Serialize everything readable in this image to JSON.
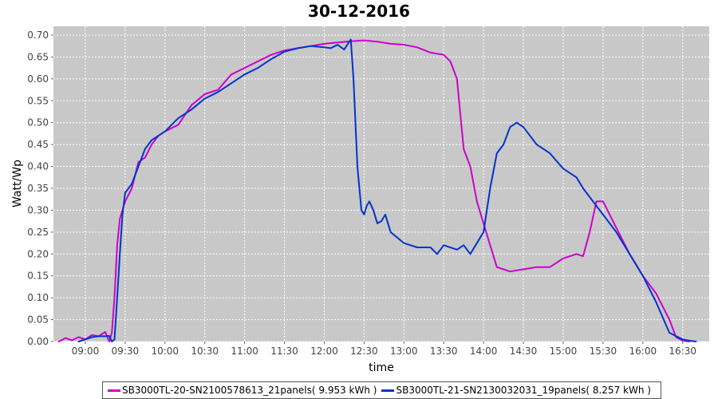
{
  "chart_data": {
    "type": "line",
    "title": "30-12-2016",
    "xlabel": "time",
    "ylabel": "Watt/Wp",
    "xlim": [
      "08:36",
      "16:50"
    ],
    "ylim": [
      0,
      0.72
    ],
    "yticks": [
      0.0,
      0.05,
      0.1,
      0.15,
      0.2,
      0.25,
      0.3,
      0.35,
      0.4,
      0.45,
      0.5,
      0.55,
      0.6,
      0.65,
      0.7
    ],
    "ytick_labels": [
      "0.00",
      "0.05",
      "0.10",
      "0.15",
      "0.20",
      "0.25",
      "0.30",
      "0.35",
      "0.40",
      "0.45",
      "0.50",
      "0.55",
      "0.60",
      "0.65",
      "0.70"
    ],
    "xticks": [
      "09:00",
      "09:30",
      "10:00",
      "10:30",
      "11:00",
      "11:30",
      "12:00",
      "12:30",
      "13:00",
      "13:30",
      "14:00",
      "14:30",
      "15:00",
      "15:30",
      "16:00",
      "16:30"
    ],
    "grid": true,
    "legend_position": "bottom",
    "background": "#c8c8c8",
    "series": [
      {
        "name": "SB3000TL-20-SN2100578613_21panels( 9.953 kWh )",
        "color": "#cc00cc",
        "x": [
          "08:40",
          "08:45",
          "08:50",
          "08:55",
          "09:00",
          "09:05",
          "09:10",
          "09:15",
          "09:18",
          "09:20",
          "09:22",
          "09:24",
          "09:26",
          "09:28",
          "09:30",
          "09:35",
          "09:40",
          "09:45",
          "09:50",
          "09:55",
          "10:00",
          "10:10",
          "10:20",
          "10:30",
          "10:40",
          "10:50",
          "11:00",
          "11:10",
          "11:20",
          "11:30",
          "11:40",
          "11:50",
          "12:00",
          "12:10",
          "12:20",
          "12:30",
          "12:40",
          "12:50",
          "13:00",
          "13:10",
          "13:20",
          "13:30",
          "13:35",
          "13:40",
          "13:45",
          "13:50",
          "13:55",
          "14:00",
          "14:05",
          "14:10",
          "14:15",
          "14:20",
          "14:30",
          "14:40",
          "14:50",
          "15:00",
          "15:10",
          "15:15",
          "15:20",
          "15:25",
          "15:30",
          "15:35",
          "15:40",
          "15:50",
          "16:00",
          "16:10",
          "16:20",
          "16:25",
          "16:30",
          "16:35"
        ],
        "y": [
          0.0,
          0.008,
          0.003,
          0.01,
          0.005,
          0.015,
          0.012,
          0.022,
          0.0,
          0.02,
          0.1,
          0.22,
          0.28,
          0.3,
          0.32,
          0.35,
          0.41,
          0.42,
          0.45,
          0.47,
          0.48,
          0.495,
          0.54,
          0.565,
          0.575,
          0.61,
          0.625,
          0.64,
          0.655,
          0.665,
          0.67,
          0.675,
          0.68,
          0.683,
          0.686,
          0.688,
          0.685,
          0.68,
          0.678,
          0.672,
          0.66,
          0.655,
          0.64,
          0.6,
          0.44,
          0.4,
          0.32,
          0.27,
          0.22,
          0.17,
          0.165,
          0.16,
          0.165,
          0.17,
          0.17,
          0.19,
          0.2,
          0.195,
          0.25,
          0.32,
          0.32,
          0.29,
          0.26,
          0.2,
          0.15,
          0.11,
          0.05,
          0.01,
          0.002,
          0.0
        ]
      },
      {
        "name": "SB3000TL-21-SN2130032031_19panels( 8.257 kWh )",
        "color": "#0033cc",
        "x": [
          "08:55",
          "09:00",
          "09:05",
          "09:10",
          "09:15",
          "09:18",
          "09:20",
          "09:22",
          "09:24",
          "09:26",
          "09:28",
          "09:30",
          "09:35",
          "09:40",
          "09:45",
          "09:50",
          "09:55",
          "10:00",
          "10:10",
          "10:20",
          "10:30",
          "10:40",
          "10:50",
          "11:00",
          "11:10",
          "11:20",
          "11:30",
          "11:40",
          "11:50",
          "12:00",
          "12:05",
          "12:10",
          "12:15",
          "12:20",
          "12:22",
          "12:25",
          "12:28",
          "12:30",
          "12:32",
          "12:34",
          "12:37",
          "12:40",
          "12:43",
          "12:46",
          "12:50",
          "13:00",
          "13:10",
          "13:20",
          "13:25",
          "13:30",
          "13:40",
          "13:45",
          "13:50",
          "14:00",
          "14:05",
          "14:10",
          "14:15",
          "14:20",
          "14:25",
          "14:30",
          "14:35",
          "14:40",
          "14:50",
          "15:00",
          "15:10",
          "15:15",
          "15:20",
          "15:30",
          "15:40",
          "15:50",
          "16:00",
          "16:10",
          "16:20",
          "16:30",
          "16:35",
          "16:40"
        ],
        "y": [
          0.0,
          0.005,
          0.01,
          0.012,
          0.012,
          0.013,
          0.0,
          0.005,
          0.1,
          0.2,
          0.29,
          0.34,
          0.36,
          0.4,
          0.44,
          0.46,
          0.47,
          0.48,
          0.51,
          0.53,
          0.555,
          0.57,
          0.59,
          0.61,
          0.625,
          0.645,
          0.662,
          0.67,
          0.675,
          0.672,
          0.67,
          0.678,
          0.667,
          0.69,
          0.6,
          0.4,
          0.3,
          0.29,
          0.31,
          0.32,
          0.3,
          0.27,
          0.275,
          0.29,
          0.25,
          0.225,
          0.215,
          0.215,
          0.2,
          0.22,
          0.21,
          0.22,
          0.2,
          0.25,
          0.35,
          0.43,
          0.45,
          0.49,
          0.5,
          0.49,
          0.47,
          0.45,
          0.43,
          0.395,
          0.375,
          0.35,
          0.33,
          0.29,
          0.25,
          0.2,
          0.15,
          0.09,
          0.02,
          0.005,
          0.002,
          0.0
        ]
      }
    ]
  }
}
